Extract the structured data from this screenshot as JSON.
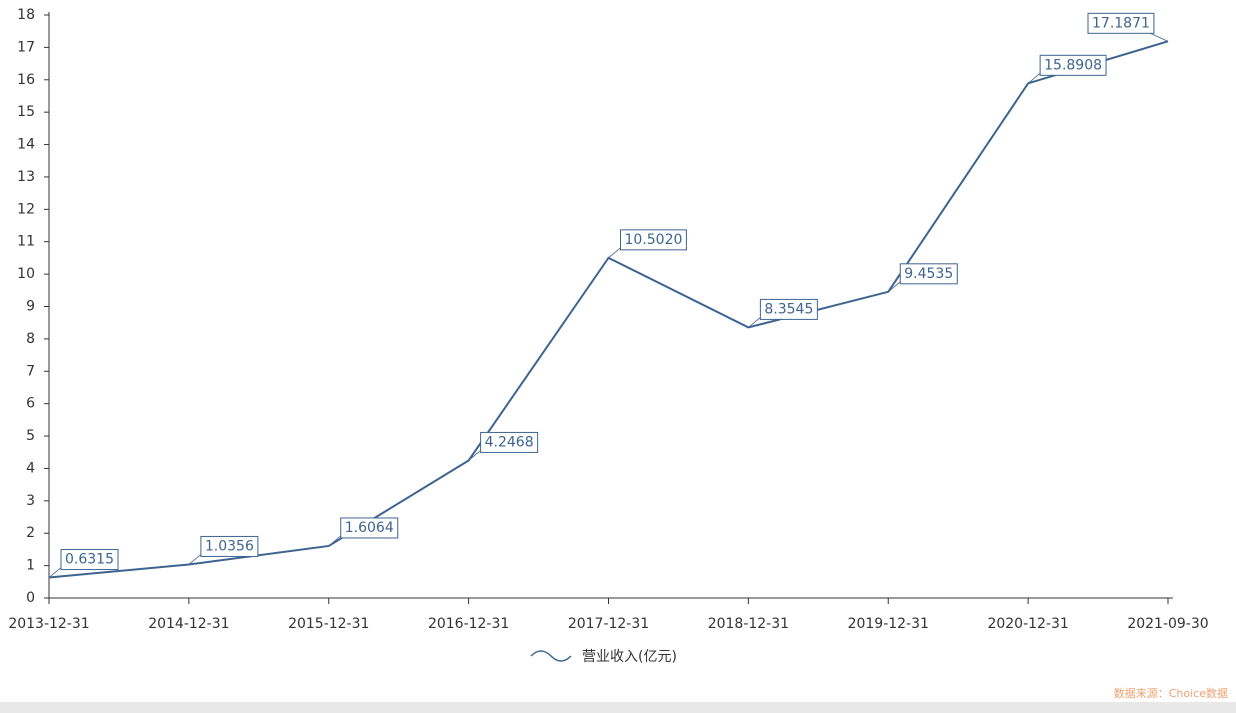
{
  "chart_data": {
    "type": "line",
    "categories": [
      "2013-12-31",
      "2014-12-31",
      "2015-12-31",
      "2016-12-31",
      "2017-12-31",
      "2018-12-31",
      "2019-12-31",
      "2020-12-31",
      "2021-09-30"
    ],
    "series": [
      {
        "name": "营业收入(亿元)",
        "color": "#3d6491",
        "values": [
          0.6315,
          1.0356,
          1.6064,
          4.2468,
          10.502,
          8.3545,
          9.4535,
          15.8908,
          17.1871
        ],
        "value_labels": [
          "0.6315",
          "1.0356",
          "1.6064",
          "4.2468",
          "10.5020",
          "8.3545",
          "9.4535",
          "15.8908",
          "17.1871"
        ]
      }
    ],
    "ylim": [
      0,
      18
    ],
    "yticks": [
      0,
      1,
      2,
      3,
      4,
      5,
      6,
      7,
      8,
      9,
      10,
      11,
      12,
      13,
      14,
      15,
      16,
      17,
      18
    ],
    "source": "数据来源：Choice数据"
  }
}
